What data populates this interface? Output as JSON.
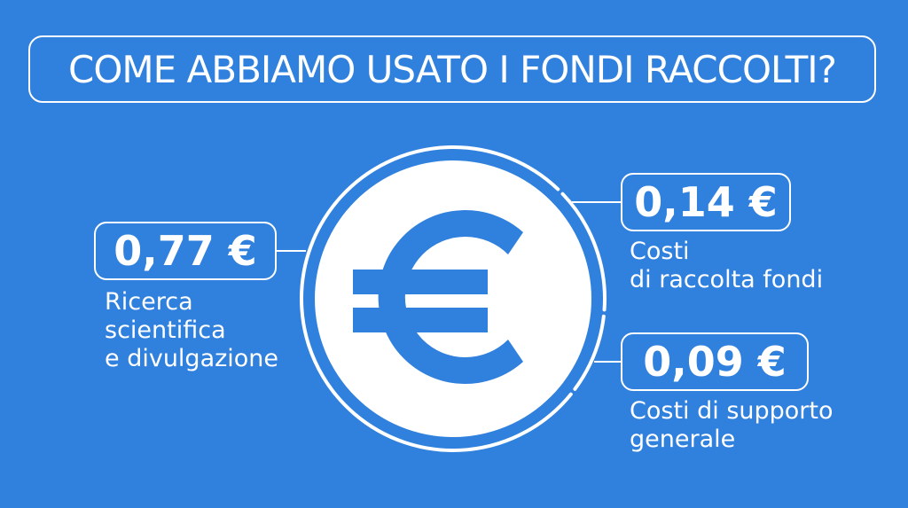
{
  "title": "COME ABBIAMO USATO I FONDI RACCOLTI?",
  "center_icon": "euro-icon",
  "colors": {
    "background": "#3080de",
    "foreground": "#ffffff"
  },
  "chart_data": {
    "type": "pie",
    "items": [
      {
        "value_label": "0,77 €",
        "value": 0.77,
        "label": "Ricerca\nscientifica\ne divulgazione"
      },
      {
        "value_label": "0,14 €",
        "value": 0.14,
        "label": "Costi\ndi raccolta fondi"
      },
      {
        "value_label": "0,09 €",
        "value": 0.09,
        "label": "Costi di supporto\ngenerale"
      }
    ]
  }
}
